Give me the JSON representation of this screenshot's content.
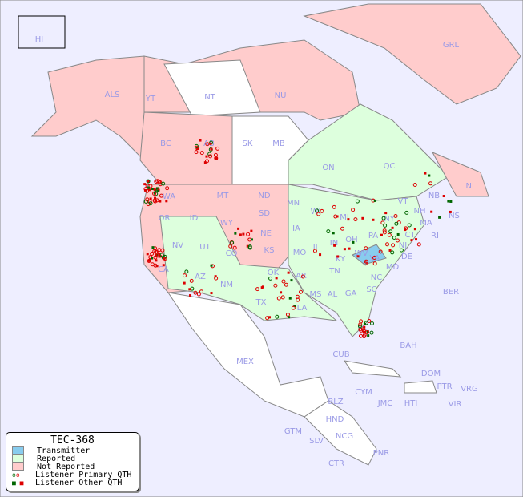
{
  "title": "TEC-368",
  "colors": {
    "background": "#eeeeff",
    "transmitter": "#88ccee",
    "reported": "#ddffdd",
    "not_reported": "#ffcccc",
    "no_data": "#ffffff",
    "primary_green": "#006600",
    "primary_red": "#dd0000"
  },
  "legend": [
    {
      "label": "__Transmitter",
      "type": "transmitter"
    },
    {
      "label": "__Reported",
      "type": "reported"
    },
    {
      "label": "__Not Reported",
      "type": "not_reported"
    },
    {
      "label": "__Listener Primary QTH",
      "type": "primary"
    },
    {
      "label": "__Listener Other QTH",
      "type": "other"
    }
  ],
  "regions": [
    "HI",
    "ALS",
    "YT",
    "NT",
    "NU",
    "GRL",
    "BC",
    "AB",
    "SK",
    "MB",
    "ON",
    "QC",
    "NL",
    "NB",
    "NS",
    "WA",
    "OR",
    "ID",
    "MT",
    "ND",
    "MN",
    "WI",
    "MI",
    "SD",
    "WY",
    "NE",
    "IA",
    "IL",
    "IN",
    "OH",
    "PA",
    "NY",
    "VT",
    "NH",
    "MA",
    "CT",
    "RI",
    "NJ",
    "DE",
    "MD",
    "WV",
    "VA",
    "KY",
    "TN",
    "NC",
    "SC",
    "GA",
    "AL",
    "MS",
    "LA",
    "AR",
    "MO",
    "KS",
    "OK",
    "TX",
    "NM",
    "AZ",
    "UT",
    "CO",
    "NV",
    "CA",
    "FL",
    "MEX",
    "CUB",
    "BAH",
    "BER",
    "DOM",
    "PTR",
    "VRG",
    "VIR",
    "CYM",
    "JMC",
    "HTI",
    "BLZ",
    "HND",
    "GTM",
    "SLV",
    "NCG",
    "CTR",
    "PNR"
  ]
}
